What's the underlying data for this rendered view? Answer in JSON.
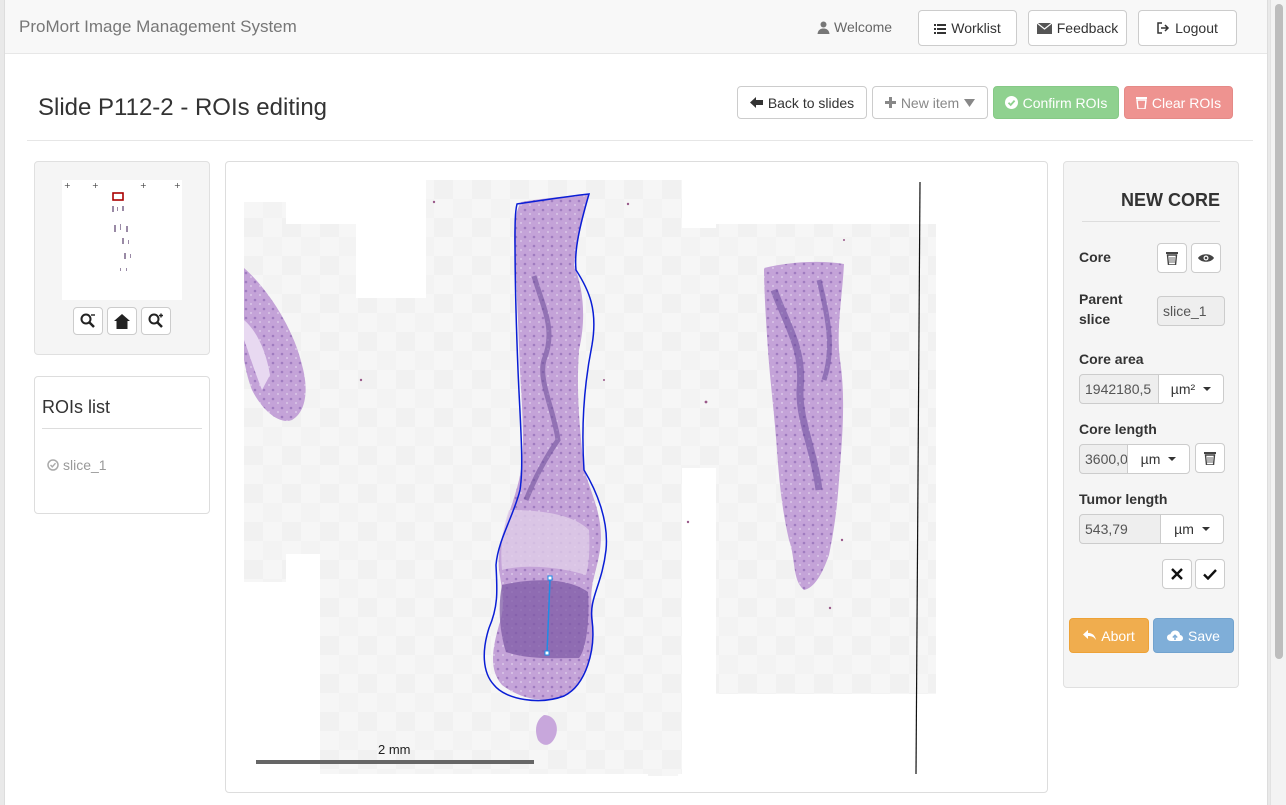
{
  "app": {
    "title": "ProMort Image Management System",
    "welcome": "Welcome",
    "nav_buttons": {
      "worklist": "Worklist",
      "feedback": "Feedback",
      "logout": "Logout"
    }
  },
  "page": {
    "title": "Slide P112-2 - ROIs editing",
    "actions": {
      "back": "Back to slides",
      "new_item": "New item",
      "confirm": "Confirm ROIs",
      "clear": "Clear ROIs"
    }
  },
  "rois_list": {
    "title": "ROIs list",
    "items": [
      "slice_1"
    ]
  },
  "viewer": {
    "scale_label": "2 mm"
  },
  "new_core": {
    "title": "NEW CORE",
    "core_label": "Core",
    "parent_slice_label_1": "Parent",
    "parent_slice_label_2": "slice",
    "parent_slice_value": "slice_1",
    "core_area_label": "Core area",
    "core_area_value": "1942180,5",
    "core_area_unit": "µm²",
    "core_length_label": "Core length",
    "core_length_value": "3600,0",
    "core_length_unit": "µm",
    "tumor_length_label": "Tumor length",
    "tumor_length_value": "543,79",
    "tumor_length_unit": "µm",
    "abort": "Abort",
    "save": "Save"
  },
  "colors": {
    "confirm_green": "#8fd18f",
    "clear_red": "#ee9390",
    "abort_orange": "#f0ad4e",
    "save_blue": "#7faed8",
    "roi_outline": "#0a1ed6",
    "tissue": "#b68fcf"
  }
}
